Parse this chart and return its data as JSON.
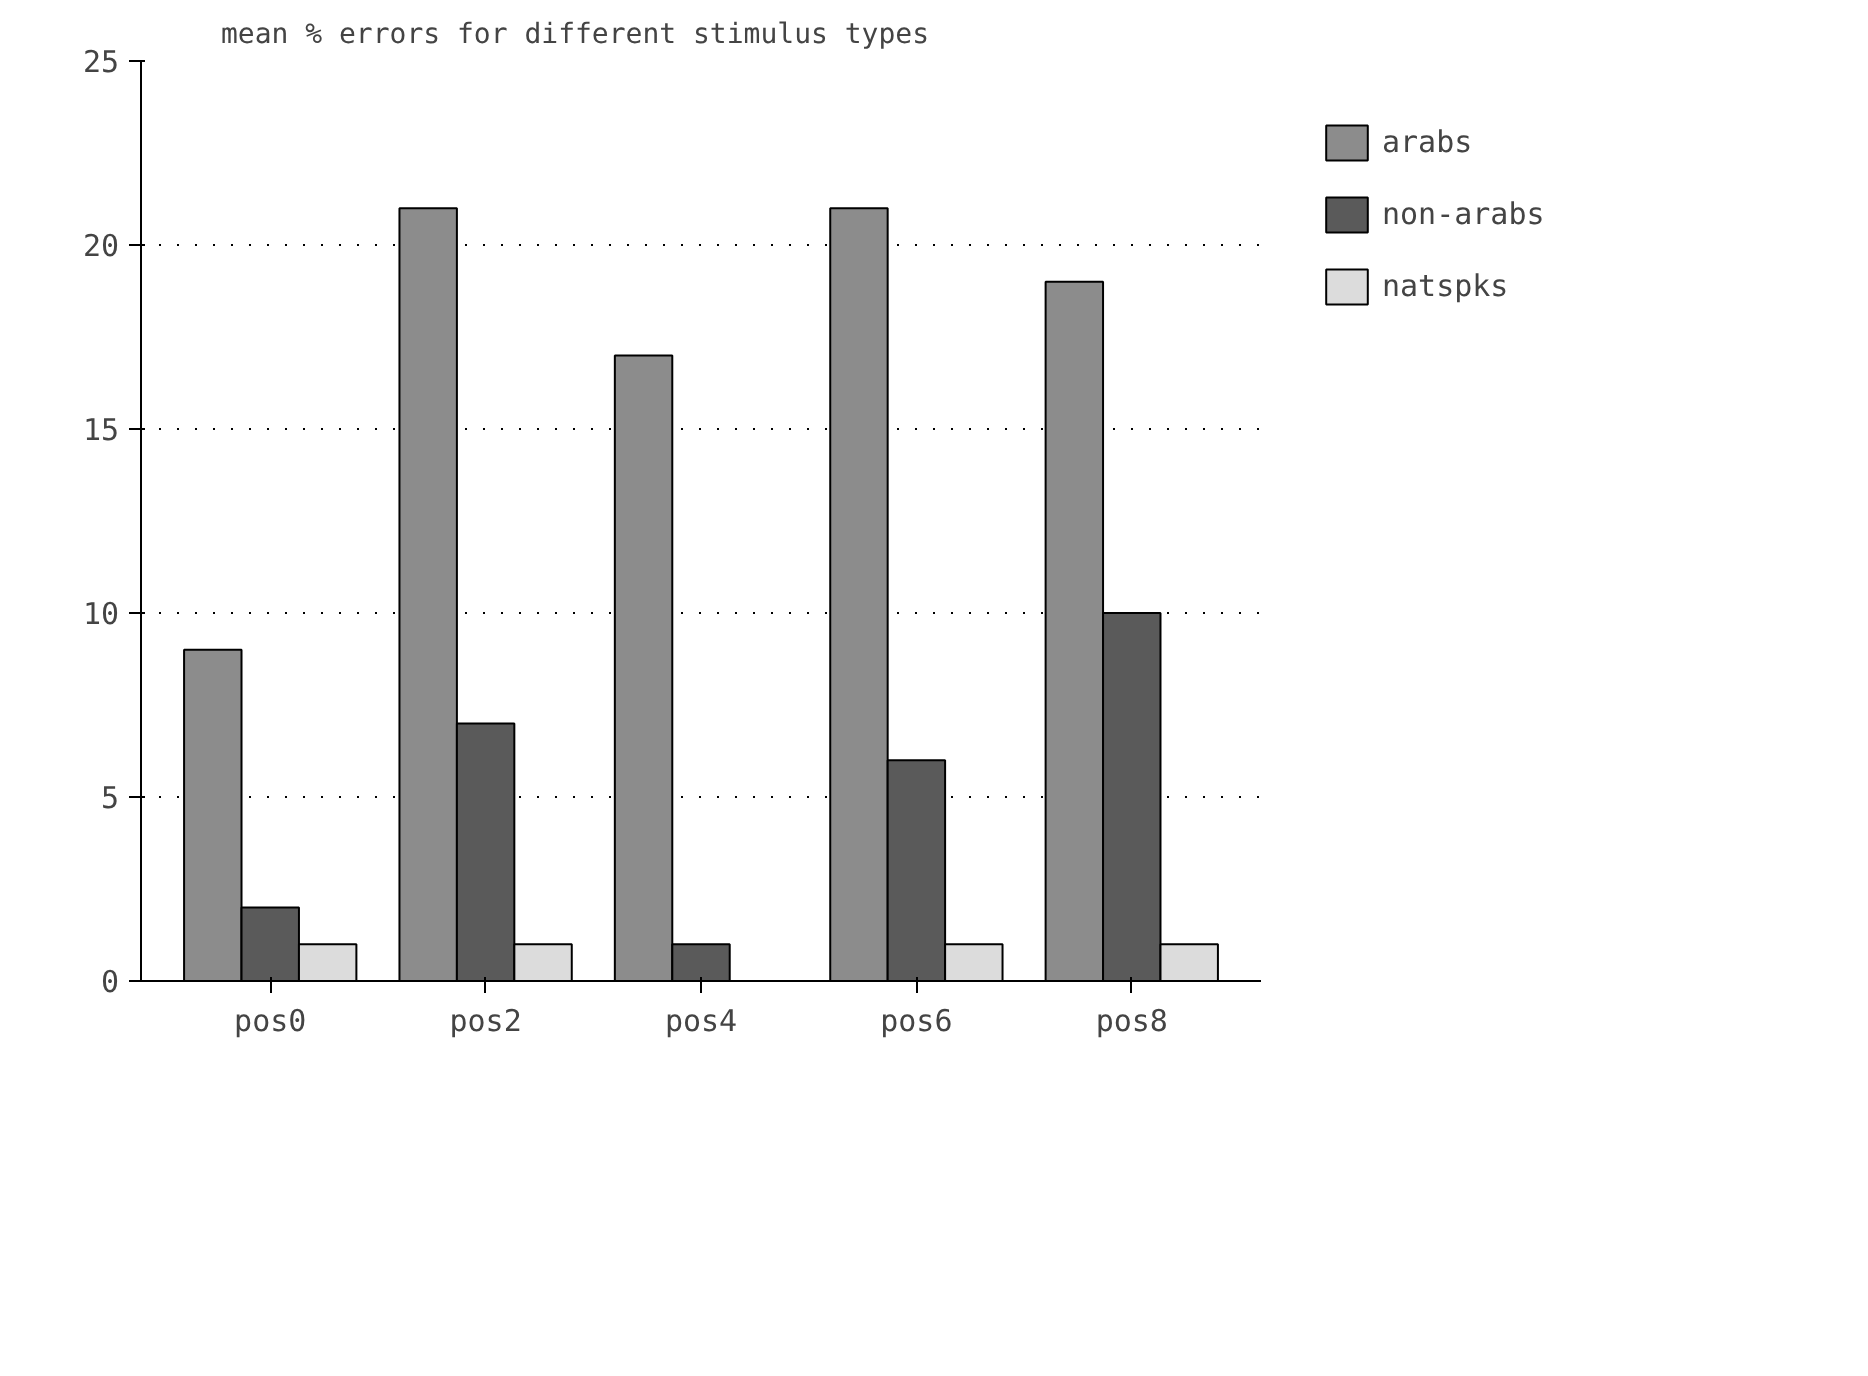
{
  "chart_data": {
    "type": "bar",
    "title": "mean % errors for different stimulus types",
    "categories": [
      "pos0",
      "pos2",
      "pos4",
      "pos6",
      "pos8"
    ],
    "series": [
      {
        "name": "arabs",
        "color": "#8c8c8c",
        "values": [
          9,
          21,
          17,
          21,
          19
        ]
      },
      {
        "name": "non-arabs",
        "color": "#5a5a5a",
        "values": [
          2,
          7,
          1,
          6,
          10
        ]
      },
      {
        "name": "natspks",
        "color": "#dcdcdc",
        "values": [
          1,
          1,
          null,
          1,
          1
        ]
      }
    ],
    "ylim": [
      0,
      25
    ],
    "yticks": [
      0,
      5,
      10,
      15,
      20,
      25
    ],
    "grid": "y",
    "legend": "right"
  }
}
